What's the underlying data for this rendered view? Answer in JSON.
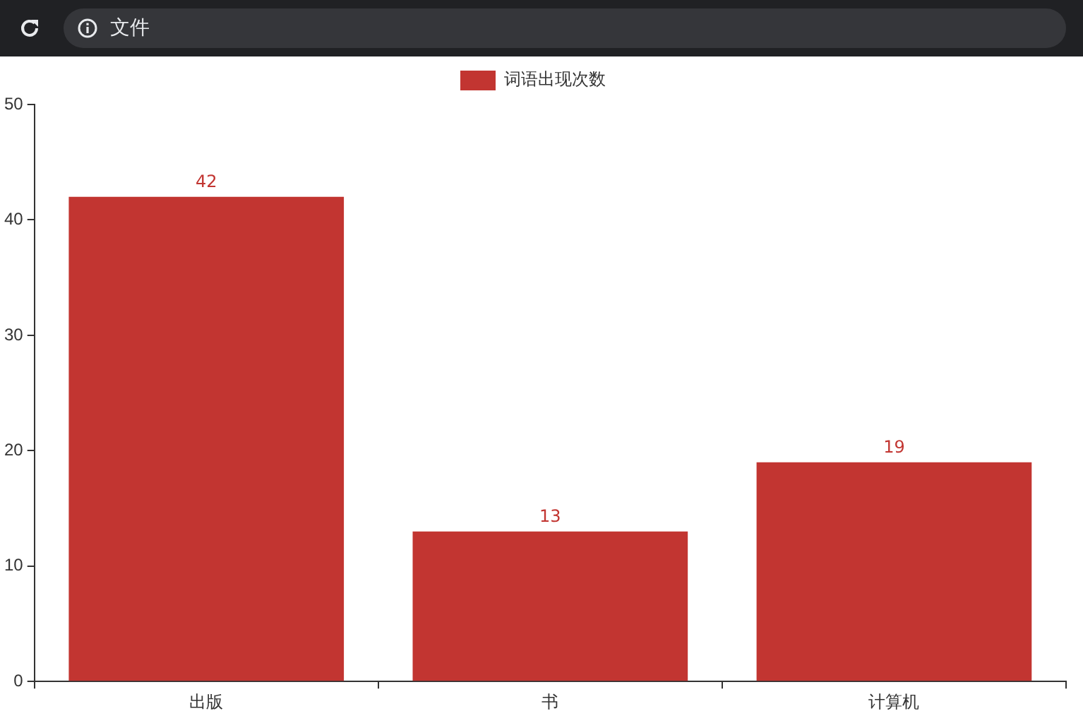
{
  "chart_data": {
    "type": "bar",
    "categories": [
      "出版",
      "书",
      "计算机"
    ],
    "series": [
      {
        "name": "词语出现次数",
        "color": "#c23531",
        "values": [
          42,
          13,
          19
        ]
      }
    ],
    "ylim": [
      0,
      50
    ],
    "yticks": [
      0,
      10,
      20,
      30,
      40,
      50
    ],
    "grid": false,
    "legend": "top",
    "data_labels": true,
    "annotations": [
      "文件"
    ]
  }
}
